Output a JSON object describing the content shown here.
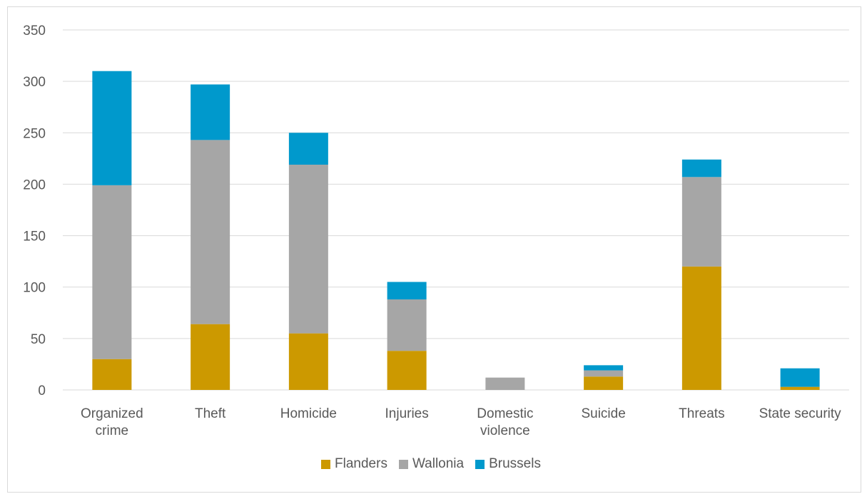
{
  "chart_data": {
    "type": "bar",
    "stacked": true,
    "categories": [
      [
        "Organized",
        "crime"
      ],
      [
        "Theft"
      ],
      [
        "Homicide"
      ],
      [
        "Injuries"
      ],
      [
        "Domestic",
        "violence"
      ],
      [
        "Suicide"
      ],
      [
        "Threats"
      ],
      [
        "State security"
      ]
    ],
    "series": [
      {
        "name": "Flanders",
        "color": "#cc9900",
        "values": [
          30,
          64,
          55,
          38,
          0,
          13,
          120,
          3
        ]
      },
      {
        "name": "Wallonia",
        "color": "#a6a6a6",
        "values": [
          169,
          179,
          164,
          50,
          12,
          6,
          87,
          0
        ]
      },
      {
        "name": "Brussels",
        "color": "#0099cc",
        "values": [
          111,
          54,
          31,
          17,
          0,
          5,
          17,
          18
        ]
      }
    ],
    "ylim": [
      0,
      350
    ],
    "yticks": [
      0,
      50,
      100,
      150,
      200,
      250,
      300,
      350
    ],
    "grid": true,
    "legend_position": "bottom",
    "title": "",
    "xlabel": "",
    "ylabel": ""
  }
}
